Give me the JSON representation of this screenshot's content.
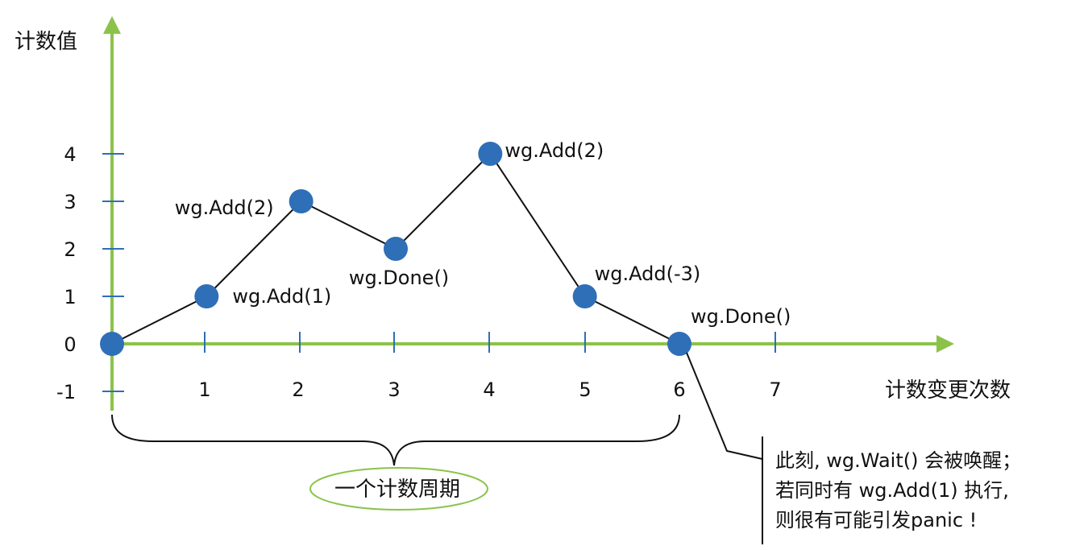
{
  "axes": {
    "y_title": "计数值",
    "x_title": "计数变更次数",
    "x_ticks": [
      "1",
      "2",
      "3",
      "4",
      "5",
      "6",
      "7"
    ],
    "y_ticks": [
      "4",
      "3",
      "2",
      "1",
      "0",
      "-1"
    ]
  },
  "chart_data": {
    "type": "line",
    "x": [
      0,
      1,
      2,
      3,
      4,
      5,
      6
    ],
    "y": [
      0,
      1,
      3,
      2,
      4,
      1,
      0
    ],
    "xlim": [
      0,
      7
    ],
    "ylim": [
      -1,
      4
    ],
    "annotations": [
      "",
      "wg.Add(1)",
      "wg.Add(2)",
      "wg.Done()",
      "wg.Add(2)",
      "wg.Add(-3)",
      "wg.Done()"
    ],
    "point_color": "#2e6fb7",
    "line_color": "#111111",
    "axis_color": "#8bc34a"
  },
  "cycle_label": "一个计数周期",
  "callout": {
    "line1": "此刻, wg.Wait() 会被唤醒；",
    "line2": "若同时有 wg.Add(1) 执行,",
    "line3": "则很有可能引发panic !"
  }
}
